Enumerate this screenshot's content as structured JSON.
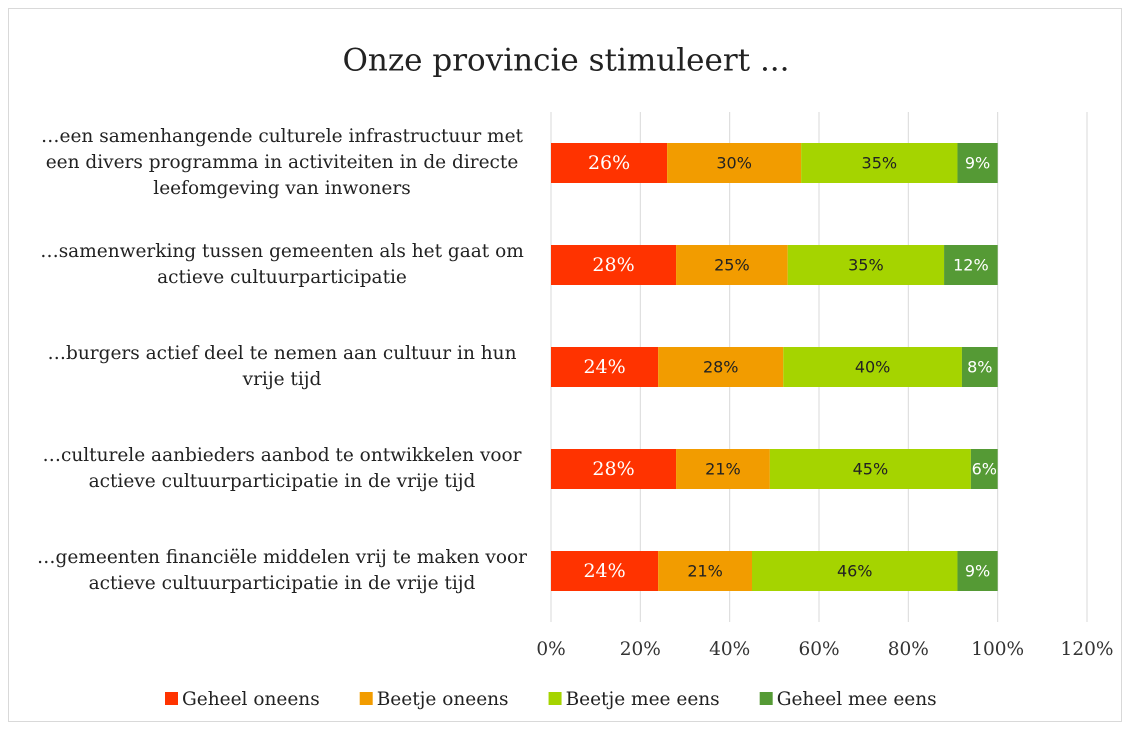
{
  "chart_data": {
    "type": "stacked_bar_horizontal",
    "title": "Onze provincie stimuleert ...",
    "categories": [
      "…een samenhangende culturele infrastructuur met een divers programma in activiteiten in de directe leefomgeving van inwoners",
      "…samenwerking tussen gemeenten als het gaat om actieve cultuurparticipatie",
      "…burgers actief deel te nemen aan cultuur in hun vrije tijd",
      "…culturele aanbieders aanbod te ontwikkelen voor actieve cultuurparticipatie in de vrije tijd",
      "…gemeenten financiële middelen vrij te maken voor actieve cultuurparticipatie in de vrije tijd"
    ],
    "series": [
      {
        "name": "Geheel oneens",
        "color": "#ff3300",
        "values": [
          26,
          28,
          24,
          28,
          24
        ],
        "value_labels": [
          "26%",
          "28%",
          "24%",
          "28%",
          "24%"
        ]
      },
      {
        "name": "Beetje oneens",
        "color": "#f29c00",
        "values": [
          30,
          25,
          28,
          21,
          21
        ],
        "value_labels": [
          "30%",
          "25%",
          "28%",
          "21%",
          "21%"
        ]
      },
      {
        "name": "Beetje mee eens",
        "color": "#a5d400",
        "values": [
          35,
          35,
          40,
          45,
          46
        ],
        "value_labels": [
          "35%",
          "35%",
          "40%",
          "45%",
          "46%"
        ]
      },
      {
        "name": "Geheel mee eens",
        "color": "#559a35",
        "values": [
          9,
          12,
          8,
          6,
          9
        ],
        "value_labels": [
          "9%",
          "12%",
          "8%",
          "6%",
          "9%"
        ]
      }
    ],
    "xlim": [
      0,
      120
    ],
    "xticks": [
      {
        "value": 0,
        "label": "0%"
      },
      {
        "value": 20,
        "label": "20%"
      },
      {
        "value": 40,
        "label": "40%"
      },
      {
        "value": 60,
        "label": "60%"
      },
      {
        "value": 80,
        "label": "80%"
      },
      {
        "value": 100,
        "label": "100%"
      },
      {
        "value": 120,
        "label": "120%"
      }
    ],
    "grid": true,
    "legend": "bottom"
  }
}
